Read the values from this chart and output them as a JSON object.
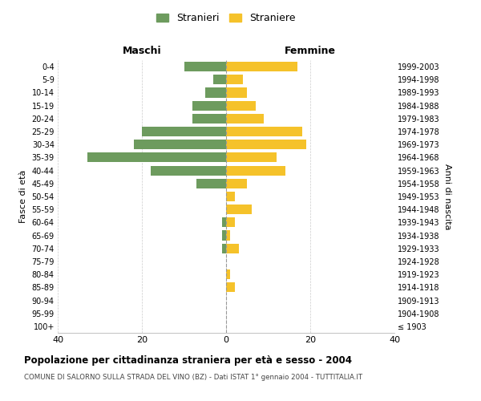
{
  "age_groups": [
    "100+",
    "95-99",
    "90-94",
    "85-89",
    "80-84",
    "75-79",
    "70-74",
    "65-69",
    "60-64",
    "55-59",
    "50-54",
    "45-49",
    "40-44",
    "35-39",
    "30-34",
    "25-29",
    "20-24",
    "15-19",
    "10-14",
    "5-9",
    "0-4"
  ],
  "birth_years": [
    "≤ 1903",
    "1904-1908",
    "1909-1913",
    "1914-1918",
    "1919-1923",
    "1924-1928",
    "1929-1933",
    "1934-1938",
    "1939-1943",
    "1944-1948",
    "1949-1953",
    "1954-1958",
    "1959-1963",
    "1964-1968",
    "1969-1973",
    "1974-1978",
    "1979-1983",
    "1984-1988",
    "1989-1993",
    "1994-1998",
    "1999-2003"
  ],
  "maschi": [
    0,
    0,
    0,
    0,
    0,
    0,
    1,
    1,
    1,
    0,
    0,
    7,
    18,
    33,
    22,
    20,
    8,
    8,
    5,
    3,
    10
  ],
  "femmine": [
    0,
    0,
    0,
    2,
    1,
    0,
    3,
    1,
    2,
    6,
    2,
    5,
    14,
    12,
    19,
    18,
    9,
    7,
    5,
    4,
    17
  ],
  "color_maschi": "#6d9b5e",
  "color_femmine": "#f5c22a",
  "title": "Popolazione per cittadinanza straniera per età e sesso - 2004",
  "subtitle": "COMUNE DI SALORNO SULLA STRADA DEL VINO (BZ) - Dati ISTAT 1° gennaio 2004 - TUTTITALIA.IT",
  "xlabel_left": "Maschi",
  "xlabel_right": "Femmine",
  "ylabel_left": "Fasce di età",
  "ylabel_right": "Anni di nascita",
  "legend_maschi": "Stranieri",
  "legend_femmine": "Straniere",
  "xlim": 40,
  "background_color": "#ffffff",
  "grid_color": "#cccccc"
}
